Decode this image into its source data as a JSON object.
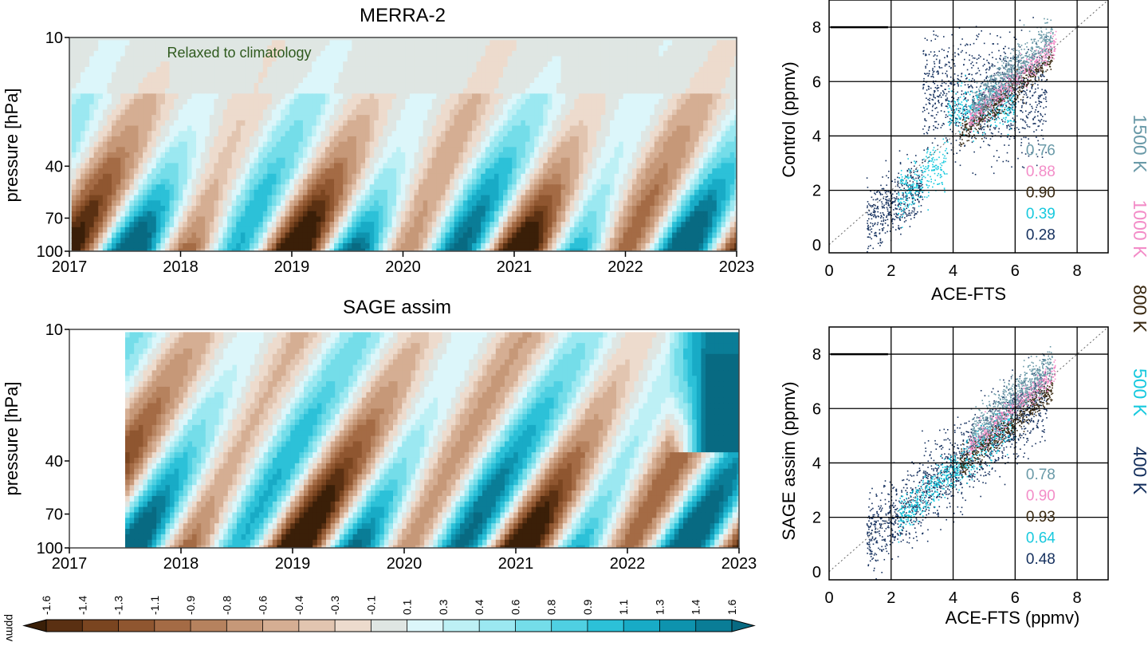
{
  "colorbar": {
    "unit": "ppmv",
    "labels": [
      "-1.6",
      "-1.4",
      "-1.3",
      "-1.1",
      "-0.9",
      "-0.8",
      "-0.6",
      "-0.4",
      "-0.3",
      "-0.1",
      "0.1",
      "0.3",
      "0.4",
      "0.6",
      "0.8",
      "0.9",
      "1.1",
      "1.3",
      "1.4",
      "1.6"
    ],
    "colors": [
      "#3a1f08",
      "#5a3012",
      "#7a4520",
      "#8f5630",
      "#a46b45",
      "#b6825e",
      "#c69878",
      "#d5ae93",
      "#e2c5b0",
      "#eddbcd",
      "#dfe6e3",
      "#dcf6fa",
      "#bdf0f5",
      "#9be8f1",
      "#74dde9",
      "#4fd0e2",
      "#2cc1d8",
      "#18abc6",
      "#0e93ae",
      "#0a7d97",
      "#086a82"
    ]
  },
  "legend_levels": [
    {
      "label": "1500 K",
      "color": "#6a9aa8"
    },
    {
      "label": "1000 K",
      "color": "#f38dc8"
    },
    {
      "label": "800 K",
      "color": "#3a2a12"
    },
    {
      "label": "500 K",
      "color": "#18c9de"
    },
    {
      "label": "400 K",
      "color": "#15305e"
    }
  ],
  "chart_data": [
    {
      "type": "heatmap",
      "title": "MERRA-2",
      "annotation": "Relaxed to climatology",
      "ylabel": "pressure [hPa]",
      "xlabel": "",
      "xlim": [
        2017,
        2023
      ],
      "ylim": [
        100,
        10
      ],
      "y_scale": "log",
      "x_ticks": [
        "2017",
        "2018",
        "2019",
        "2020",
        "2021",
        "2022",
        "2023"
      ],
      "y_ticks": [
        "10",
        "40",
        "70",
        "100"
      ],
      "data_start_year": 2017,
      "series": [
        {
          "name": "",
          "values_description_free": true
        }
      ]
    },
    {
      "type": "heatmap",
      "title": "SAGE assim",
      "ylabel": "pressure [hPa]",
      "xlabel": "",
      "xlim": [
        2017,
        2023
      ],
      "ylim": [
        100,
        10
      ],
      "y_scale": "log",
      "x_ticks": [
        "2017",
        "2018",
        "2019",
        "2020",
        "2021",
        "2022",
        "2023"
      ],
      "y_ticks": [
        "10",
        "40",
        "70",
        "100"
      ],
      "data_start_year": 2017.5
    },
    {
      "type": "scatter",
      "xlabel": "ACE-FTS",
      "ylabel": "Control (ppmv)",
      "xlim": [
        0,
        9
      ],
      "ylim": [
        -0.3,
        9
      ],
      "x_ticks": [
        "0",
        "2",
        "4",
        "6",
        "8"
      ],
      "y_ticks": [
        "0",
        "2",
        "4",
        "6",
        "8"
      ],
      "grid": true,
      "one_to_one_line": true,
      "correlations": [
        "0.76",
        "0.88",
        "0.90",
        "0.39",
        "0.28"
      ]
    },
    {
      "type": "scatter",
      "xlabel": "ACE-FTS (ppmv)",
      "ylabel": "SAGE assim (ppmv)",
      "xlim": [
        0,
        9
      ],
      "ylim": [
        -0.3,
        9
      ],
      "x_ticks": [
        "0",
        "2",
        "4",
        "6",
        "8"
      ],
      "y_ticks": [
        "0",
        "2",
        "4",
        "6",
        "8"
      ],
      "grid": true,
      "one_to_one_line": true,
      "correlations": [
        "0.78",
        "0.90",
        "0.93",
        "0.64",
        "0.48"
      ]
    }
  ]
}
